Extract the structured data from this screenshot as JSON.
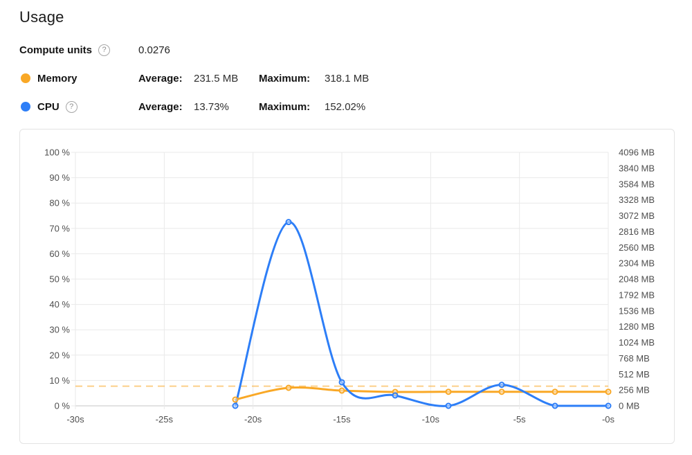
{
  "header": {
    "title": "Usage",
    "compute_units": {
      "label": "Compute units",
      "value": "0.0276",
      "help_icon": "question-mark"
    },
    "legend_rows": [
      {
        "name": "Memory",
        "avg_label": "Average:",
        "avg_value": "231.5 MB",
        "max_label": "Maximum:",
        "max_value": "318.1 MB",
        "dot_color": "#F9A826",
        "has_help": false
      },
      {
        "name": "CPU",
        "avg_label": "Average:",
        "avg_value": "13.73%",
        "max_label": "Maximum:",
        "max_value": "152.02%",
        "dot_color": "#2D7EF7",
        "has_help": true
      }
    ]
  },
  "colors": {
    "cpu": "#2D7EF7",
    "memory": "#F9A826",
    "memory_dashed": "#F9A826",
    "grid": "#e9e9e9",
    "axis_line": "#c6c6c6",
    "tick_text": "#4e4e4e",
    "panel_border": "#e3e3e3",
    "marker_fill": "#ffffff"
  },
  "chart_data": {
    "type": "line",
    "x": [
      -21,
      -18,
      -15,
      -12,
      -9,
      -6,
      -3,
      0
    ],
    "x_axis": {
      "min": -30,
      "max": 0,
      "unit": "s",
      "tick_labels": [
        "-30s",
        "-25s",
        "-20s",
        "-15s",
        "-10s",
        "-5s",
        "-0s"
      ]
    },
    "left_axis": {
      "unit": "%",
      "min": 0,
      "max": 100,
      "tick_step": 10,
      "tick_labels": [
        "100 %",
        "90 %",
        "80 %",
        "70 %",
        "60 %",
        "50 %",
        "40 %",
        "30 %",
        "20 %",
        "10 %",
        "0 %"
      ]
    },
    "right_axis": {
      "unit": "MB",
      "min": 0,
      "max": 4096,
      "tick_step": 256,
      "tick_labels": [
        "4096 MB",
        "3840 MB",
        "3584 MB",
        "3328 MB",
        "3072 MB",
        "2816 MB",
        "2560 MB",
        "2304 MB",
        "2048 MB",
        "1792 MB",
        "1536 MB",
        "1280 MB",
        "1024 MB",
        "768 MB",
        "512 MB",
        "256 MB",
        "0 MB"
      ]
    },
    "series": [
      {
        "name": "Memory",
        "axis": "right",
        "unit": "MB",
        "color": "#F9A826",
        "values": [
          100,
          291,
          246,
          224,
          227,
          227,
          227,
          227
        ]
      },
      {
        "name": "CPU",
        "axis": "left",
        "unit": "%",
        "color": "#2D7EF7",
        "values": [
          0,
          72.5,
          9.3,
          4.1,
          0,
          8.3,
          0,
          0
        ]
      }
    ],
    "reference_line": {
      "series": "Memory",
      "axis": "right",
      "value": 318.1,
      "style": "dashed"
    },
    "grid": true,
    "markers": true,
    "legend_position": "outside-top-left"
  }
}
